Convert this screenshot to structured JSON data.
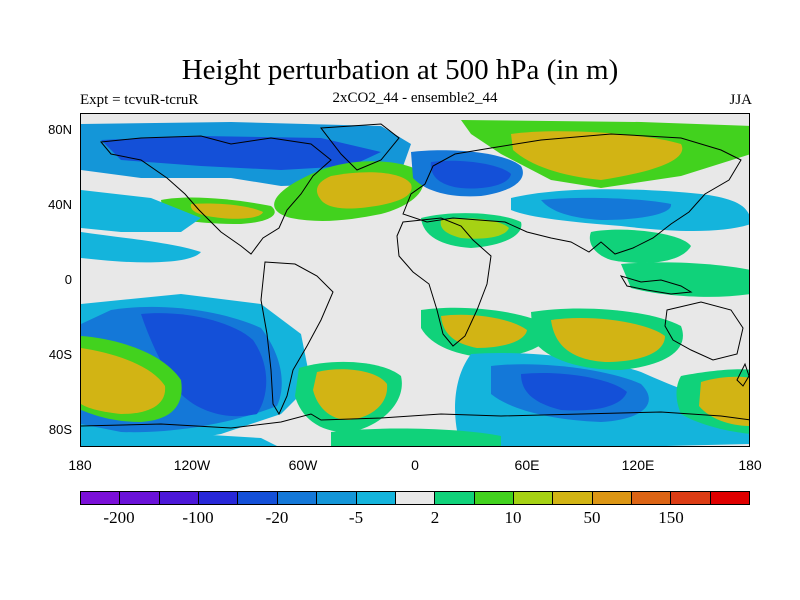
{
  "header": {
    "title": "Height perturbation at 500 hPa (in m)",
    "left_label": "Expt = tcvuR-tcruR",
    "center_label": "2xCO2_44 - ensemble2_44",
    "right_label": "JJA"
  },
  "map": {
    "projection": "cylindrical equidistant",
    "lon_range": [
      -180,
      180
    ],
    "lat_range": [
      -90,
      90
    ],
    "lat_labels": [
      {
        "text": "80N",
        "lat": 80
      },
      {
        "text": "40N",
        "lat": 40
      },
      {
        "text": "0",
        "lat": 0
      },
      {
        "text": "40S",
        "lat": -40
      },
      {
        "text": "80S",
        "lat": -80
      }
    ],
    "lon_labels": [
      {
        "text": "180",
        "lon": -180
      },
      {
        "text": "120W",
        "lon": -120
      },
      {
        "text": "60W",
        "lon": -60
      },
      {
        "text": "0",
        "lon": 0
      },
      {
        "text": "60E",
        "lon": 60
      },
      {
        "text": "120E",
        "lon": 120
      },
      {
        "text": "180",
        "lon": 180
      }
    ],
    "background_color": "#e8e8e8"
  },
  "colorbar": {
    "colors": [
      "#7b10d8",
      "#6a12d8",
      "#4c18d8",
      "#2828d8",
      "#1450d8",
      "#1478d8",
      "#1496d8",
      "#14b4dc",
      "#e8e8e8",
      "#10d27a",
      "#42d21e",
      "#a6d214",
      "#d2b414",
      "#dc9614",
      "#dc6414",
      "#dc3c14",
      "#e00000"
    ],
    "labels": [
      {
        "text": "-200",
        "index": 1
      },
      {
        "text": "-100",
        "index": 3
      },
      {
        "text": "-20",
        "index": 5
      },
      {
        "text": "-5",
        "index": 7
      },
      {
        "text": "2",
        "index": 9
      },
      {
        "text": "10",
        "index": 11
      },
      {
        "text": "50",
        "index": 13
      },
      {
        "text": "150",
        "index": 15
      }
    ]
  }
}
